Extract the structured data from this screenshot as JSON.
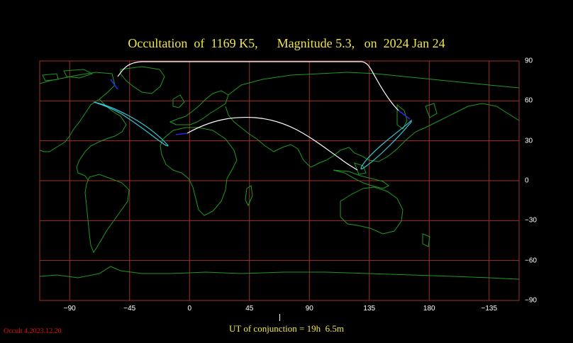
{
  "title": "Occultation  of  1169 K5,      Magnitude 5.3,   on  2024 Jan 24",
  "chart_data": {
    "type": "map",
    "x_ticks": [
      "−90",
      "−45",
      "0",
      "45",
      "90",
      "135",
      "180",
      "−135"
    ],
    "y_ticks": [
      "90",
      "60",
      "30",
      "0",
      "−30",
      "−60",
      "−90"
    ],
    "grid": true,
    "colors": {
      "background": "#000000",
      "grid": "#a0302c",
      "coastline": "#1f9a1f",
      "north_limit": "#ffffff",
      "limit_curve": "#36c8d8",
      "daylight_segment": "#2a2ae0"
    }
  },
  "footer": {
    "ut_label": "UT of conjunction = 19h  6.5m",
    "version": "Occult 4.2023.12.20"
  }
}
